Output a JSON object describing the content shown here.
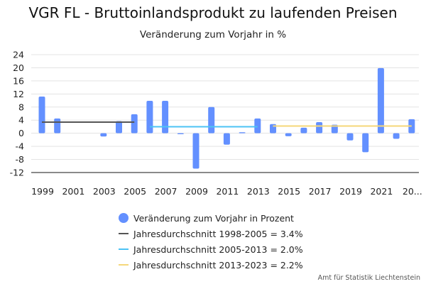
{
  "header": {
    "title": "VGR FL - Bruttoinlandsprodukt zu laufenden Preisen",
    "subtitle": "Veränderung zum Vorjahr in %"
  },
  "chart_data": {
    "type": "bar",
    "title": "VGR FL - Bruttoinlandsprodukt zu laufenden Preisen",
    "subtitle": "Veränderung zum Vorjahr in %",
    "xlabel": "",
    "ylabel": "",
    "ylim": [
      -12,
      24
    ],
    "yticks": [
      24,
      20,
      16,
      12,
      8,
      4,
      0,
      -4,
      -8,
      -12
    ],
    "grid": true,
    "categories": [
      "1999",
      "2000",
      "2001",
      "2002",
      "2003",
      "2004",
      "2005",
      "2006",
      "2007",
      "2008",
      "2009",
      "2010",
      "2011",
      "2012",
      "2013",
      "2014",
      "2015",
      "2016",
      "2017",
      "2018",
      "2019",
      "2020",
      "2021",
      "2022",
      "2023"
    ],
    "xtick_labels": [
      "1999",
      "2001",
      "2003",
      "2005",
      "2007",
      "2009",
      "2011",
      "2013",
      "2015",
      "2017",
      "2019",
      "2021",
      "20..."
    ],
    "series": [
      {
        "name": "Veränderung zum Vorjahr in Prozent",
        "type": "bar",
        "color": "#6390FF",
        "values": [
          11.2,
          4.5,
          0.0,
          0.0,
          -1.0,
          3.7,
          5.8,
          9.9,
          9.9,
          -0.3,
          -10.8,
          8.0,
          -3.5,
          0.3,
          4.5,
          2.8,
          -0.9,
          1.7,
          3.4,
          2.6,
          -2.2,
          -5.8,
          19.9,
          -1.7,
          4.3
        ]
      },
      {
        "name": "Jahresdurchschnitt 1998-2005 = 3.4%",
        "type": "line",
        "color": "#555555",
        "from": "1999",
        "to": "2005",
        "value": 3.4
      },
      {
        "name": "Jahresdurchschnitt 2005-2013 = 2.0%",
        "type": "line",
        "color": "#4CC3F5",
        "from": "2006",
        "to": "2013",
        "value": 2.0
      },
      {
        "name": "Jahresdurchschnitt 2013-2023 = 2.2%",
        "type": "line",
        "color": "#F5D77A",
        "from": "2014",
        "to": "2023",
        "value": 2.2
      }
    ],
    "legend_position": "bottom-center"
  },
  "legend": {
    "items": [
      {
        "label": "Veränderung zum Vorjahr in Prozent",
        "symbol": "dot",
        "color": "#6390FF"
      },
      {
        "label": "Jahresdurchschnitt 1998-2005 = 3.4%",
        "symbol": "line",
        "color": "#555555"
      },
      {
        "label": "Jahresdurchschnitt 2005-2013 = 2.0%",
        "symbol": "line",
        "color": "#4CC3F5"
      },
      {
        "label": "Jahresdurchschnitt 2013-2023 = 2.2%",
        "symbol": "line",
        "color": "#F5D77A"
      }
    ]
  },
  "footer": {
    "credit": "Amt für Statistik Liechtenstein"
  }
}
